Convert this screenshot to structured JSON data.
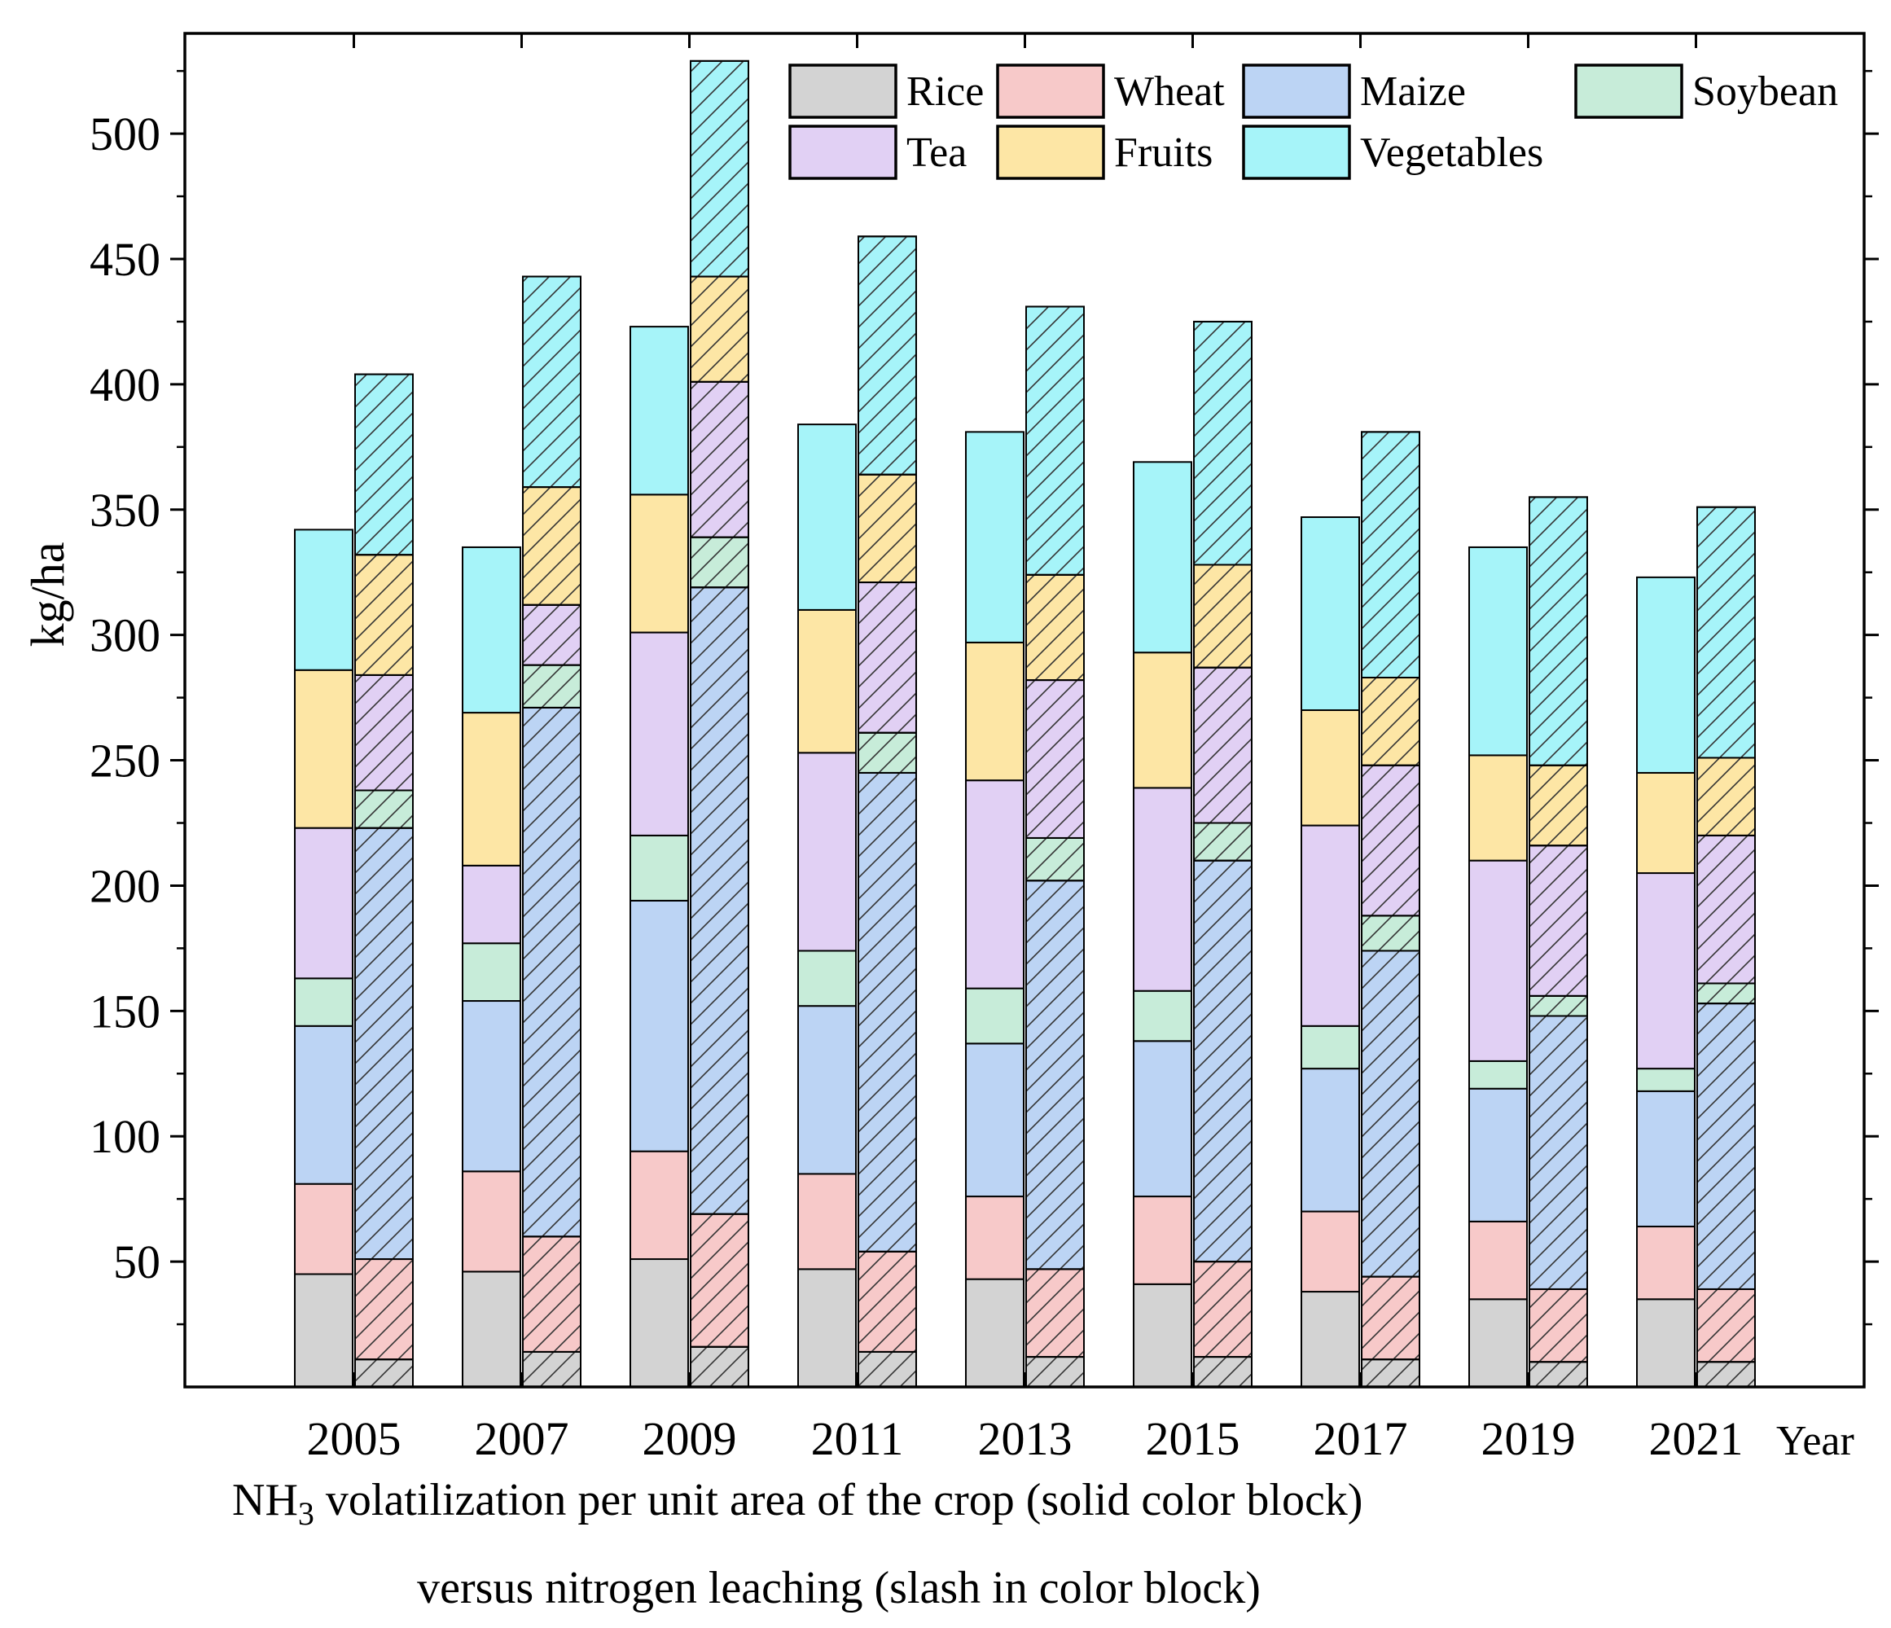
{
  "chart_data": {
    "type": "bar",
    "stacked": true,
    "grouped_pairs": true,
    "ylabel": "kg/ha",
    "xunit_label": "Year",
    "caption_line1_prefix": "NH",
    "caption_line1_sub": "3",
    "caption_line1_rest": " volatilization per unit area of the crop (solid color block)",
    "caption_line2": "versus nitrogen leaching (slash in color block)",
    "ylim": [
      0,
      540
    ],
    "yticks": [
      50,
      100,
      150,
      200,
      250,
      300,
      350,
      400,
      450,
      500
    ],
    "categories": [
      "2005",
      "2007",
      "2009",
      "2011",
      "2013",
      "2015",
      "2017",
      "2019",
      "2021"
    ],
    "legend_position": "top-right",
    "series": [
      {
        "name": "Rice",
        "color": "#d3d3d3",
        "volatilization": [
          45,
          46,
          51,
          47,
          43,
          41,
          38,
          35,
          35
        ],
        "leaching": [
          11,
          14,
          16,
          14,
          12,
          12,
          11,
          10,
          10
        ]
      },
      {
        "name": "Wheat",
        "color": "#f7c9c9",
        "volatilization": [
          36,
          40,
          43,
          38,
          33,
          35,
          32,
          31,
          29
        ],
        "leaching": [
          40,
          46,
          53,
          40,
          35,
          38,
          33,
          29,
          29
        ]
      },
      {
        "name": "Maize",
        "color": "#bcd4f4",
        "volatilization": [
          63,
          68,
          100,
          67,
          61,
          62,
          57,
          53,
          54
        ],
        "leaching": [
          172,
          211,
          250,
          191,
          155,
          160,
          130,
          109,
          114
        ]
      },
      {
        "name": "Soybean",
        "color": "#c7ecd9",
        "volatilization": [
          19,
          23,
          26,
          22,
          22,
          20,
          17,
          11,
          9
        ],
        "leaching": [
          15,
          17,
          20,
          16,
          17,
          15,
          14,
          8,
          8
        ]
      },
      {
        "name": "Tea",
        "color": "#e1d0f4",
        "volatilization": [
          60,
          31,
          81,
          79,
          83,
          81,
          80,
          80,
          78
        ],
        "leaching": [
          46,
          24,
          62,
          60,
          63,
          62,
          60,
          60,
          59
        ]
      },
      {
        "name": "Fruits",
        "color": "#fde6a5",
        "volatilization": [
          63,
          61,
          55,
          57,
          55,
          54,
          46,
          42,
          40
        ],
        "leaching": [
          48,
          47,
          42,
          43,
          42,
          41,
          35,
          32,
          31
        ]
      },
      {
        "name": "Vegetables",
        "color": "#a6f4f9",
        "volatilization": [
          56,
          66,
          67,
          74,
          84,
          76,
          77,
          83,
          78
        ],
        "leaching": [
          72,
          84,
          86,
          95,
          107,
          97,
          98,
          107,
          100
        ]
      }
    ]
  }
}
